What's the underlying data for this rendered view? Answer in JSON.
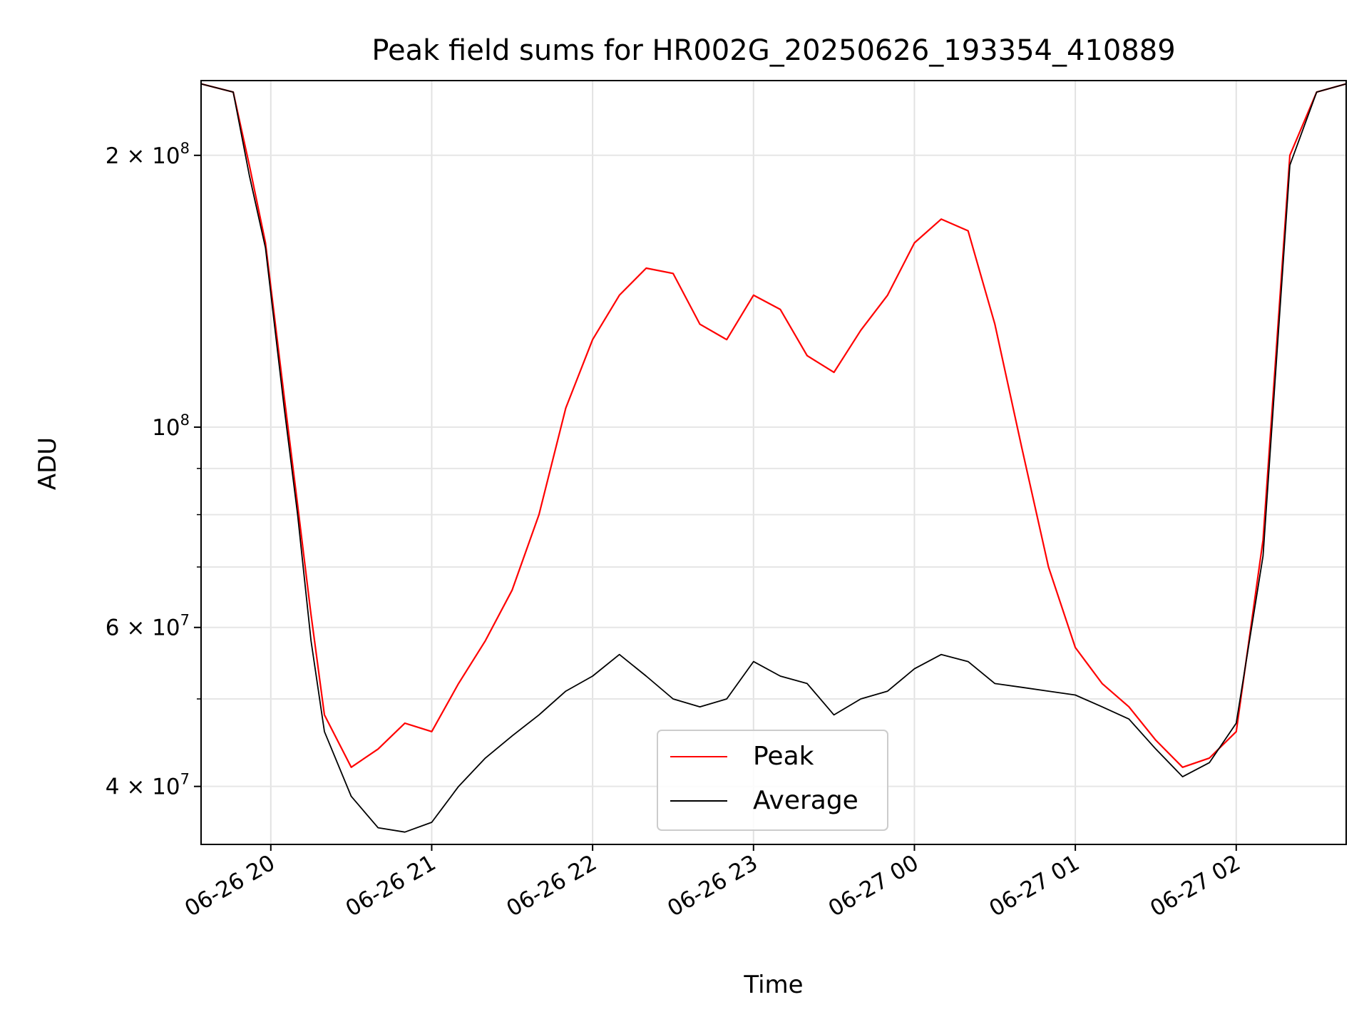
{
  "chart_data": {
    "type": "line",
    "title": "Peak field sums for HR002G_20250626_193354_410889",
    "xlabel": "Time",
    "ylabel": "ADU",
    "yscale": "log",
    "ylim": [
      34500000,
      242000000
    ],
    "xlim": [
      "06-26 19:34",
      "06-27 02:41"
    ],
    "grid": true,
    "legend_position": "lower center",
    "x_ticks": [
      "06-26 20",
      "06-26 21",
      "06-26 22",
      "06-26 23",
      "06-27 00",
      "06-27 01",
      "06-27 02"
    ],
    "y_ticks": [
      {
        "label": "2 × 10^8",
        "value": 200000000
      },
      {
        "label": "10^8",
        "value": 100000000
      },
      {
        "label": "6 × 10^7",
        "value": 60000000
      },
      {
        "label": "4 × 10^7",
        "value": 40000000
      }
    ],
    "series": [
      {
        "name": "Peak",
        "color": "#ff0000",
        "x": [
          "06-26 19:34",
          "06-26 19:46",
          "06-26 19:52",
          "06-26 19:58",
          "06-26 20:05",
          "06-26 20:10",
          "06-26 20:15",
          "06-26 20:20",
          "06-26 20:30",
          "06-26 20:40",
          "06-26 20:50",
          "06-26 21:00",
          "06-26 21:10",
          "06-26 21:20",
          "06-26 21:30",
          "06-26 21:40",
          "06-26 21:50",
          "06-26 22:00",
          "06-26 22:10",
          "06-26 22:20",
          "06-26 22:30",
          "06-26 22:40",
          "06-26 22:50",
          "06-26 23:00",
          "06-26 23:10",
          "06-26 23:20",
          "06-26 23:30",
          "06-26 23:40",
          "06-26 23:50",
          "06-27 00:00",
          "06-27 00:10",
          "06-27 00:20",
          "06-27 00:30",
          "06-27 00:40",
          "06-27 00:50",
          "06-27 01:00",
          "06-27 01:10",
          "06-27 01:20",
          "06-27 01:30",
          "06-27 01:40",
          "06-27 01:50",
          "06-27 02:00",
          "06-27 02:10",
          "06-27 02:20",
          "06-27 02:30",
          "06-27 02:41"
        ],
        "y": [
          240000000,
          235000000,
          195000000,
          160000000,
          108000000,
          82000000,
          62000000,
          48000000,
          42000000,
          44000000,
          47000000,
          46000000,
          52000000,
          58000000,
          66000000,
          80000000,
          105000000,
          125000000,
          140000000,
          150000000,
          148000000,
          130000000,
          125000000,
          140000000,
          135000000,
          120000000,
          115000000,
          128000000,
          140000000,
          160000000,
          170000000,
          165000000,
          130000000,
          95000000,
          70000000,
          57000000,
          52000000,
          49000000,
          45000000,
          42000000,
          43000000,
          46000000,
          75000000,
          200000000,
          235000000,
          240000000
        ]
      },
      {
        "name": "Average",
        "color": "#000000",
        "x": [
          "06-26 19:34",
          "06-26 19:46",
          "06-26 19:52",
          "06-26 19:58",
          "06-26 20:05",
          "06-26 20:10",
          "06-26 20:15",
          "06-26 20:20",
          "06-26 20:30",
          "06-26 20:40",
          "06-26 20:50",
          "06-26 21:00",
          "06-26 21:10",
          "06-26 21:20",
          "06-26 21:30",
          "06-26 21:40",
          "06-26 21:50",
          "06-26 22:00",
          "06-26 22:10",
          "06-26 22:20",
          "06-26 22:30",
          "06-26 22:40",
          "06-26 22:50",
          "06-26 23:00",
          "06-26 23:10",
          "06-26 23:20",
          "06-26 23:30",
          "06-26 23:40",
          "06-26 23:50",
          "06-27 00:00",
          "06-27 00:10",
          "06-27 00:20",
          "06-27 00:30",
          "06-27 00:40",
          "06-27 00:50",
          "06-27 01:00",
          "06-27 01:10",
          "06-27 01:20",
          "06-27 01:30",
          "06-27 01:40",
          "06-27 01:50",
          "06-27 02:00",
          "06-27 02:10",
          "06-27 02:20",
          "06-27 02:30",
          "06-27 02:41"
        ],
        "y": [
          240000000,
          235000000,
          190000000,
          158000000,
          105000000,
          80000000,
          58000000,
          46000000,
          39000000,
          36000000,
          35600000,
          36500000,
          40000000,
          43000000,
          45500000,
          48000000,
          51000000,
          53000000,
          56000000,
          53000000,
          50000000,
          49000000,
          50000000,
          55000000,
          53000000,
          52000000,
          48000000,
          50000000,
          51000000,
          54000000,
          56000000,
          55000000,
          52000000,
          51500000,
          51000000,
          50500000,
          49000000,
          47500000,
          44000000,
          41000000,
          42500000,
          47000000,
          72000000,
          195000000,
          235000000,
          240000000
        ]
      }
    ]
  }
}
